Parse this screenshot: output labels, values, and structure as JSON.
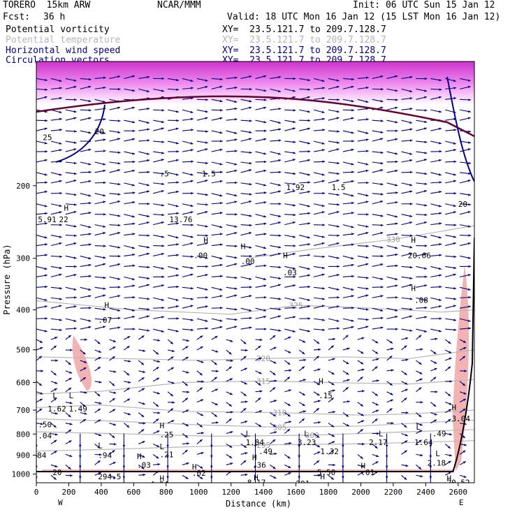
{
  "header": {
    "model": "TORERO  15km ARW",
    "source": "NCAR/MMM",
    "init": "Init: 06 UTC Sun 15 Jan 12",
    "fcst_label": "Fcst:",
    "fcst_value": "36 h",
    "valid": "Valid: 18 UTC Mon 16 Jan 12 (15 LST Mon 16 Jan 12)"
  },
  "legend": [
    {
      "label": "Potential vorticity",
      "xy": "XY=  23.5.121.7 to 209.7.128.7",
      "color": "#000000"
    },
    {
      "label": "Potential temperature",
      "xy": "XY=  23.5.121.7 to 209.7.128.7",
      "color": "#b5b5b5"
    },
    {
      "label": "Horizontal wind speed",
      "xy": "XY=  23.5.121.7 to 209.7.128.7",
      "color": "#000080"
    },
    {
      "label": "Circulation vectors",
      "xy": "XY=  23.5.121.7 to 209.7.128.7",
      "color": "#000080"
    }
  ],
  "chart_data": {
    "type": "cross-section",
    "xlabel": "Distance (km)",
    "ylabel": "Pressure (hPa)",
    "xlim": [
      0,
      2700
    ],
    "ylim": [
      1050,
      100
    ],
    "y_scale": "log",
    "x_ticks": [
      "0",
      "200",
      "400",
      "600",
      "800",
      "1000",
      "1200",
      "1400",
      "1600",
      "1800",
      "2000",
      "2200",
      "2400",
      "2600"
    ],
    "y_ticks": [
      "200",
      "300",
      "400",
      "500",
      "600",
      "700",
      "800",
      "900",
      "1000"
    ],
    "x_start_label": "W",
    "x_end_label": "E",
    "theta_contours": [
      {
        "label": "315",
        "points": [
          [
            0,
            640
          ],
          [
            400,
            630
          ],
          [
            900,
            600
          ],
          [
            1400,
            595
          ],
          [
            1800,
            600
          ],
          [
            2300,
            605
          ],
          [
            2700,
            590
          ]
        ]
      },
      {
        "label": "320",
        "points": [
          [
            0,
            520
          ],
          [
            500,
            525
          ],
          [
            1000,
            530
          ],
          [
            1400,
            525
          ],
          [
            1900,
            520
          ],
          [
            2300,
            525
          ],
          [
            2700,
            500
          ]
        ]
      },
      {
        "label": "325",
        "points": [
          [
            0,
            380
          ],
          [
            600,
            400
          ],
          [
            1200,
            410
          ],
          [
            1600,
            390
          ],
          [
            2000,
            395
          ],
          [
            2500,
            405
          ],
          [
            2700,
            400
          ]
        ]
      },
      {
        "label": "330",
        "points": [
          [
            1300,
            300
          ],
          [
            1700,
            285
          ],
          [
            2200,
            270
          ],
          [
            2700,
            250
          ]
        ]
      },
      {
        "label": "310",
        "points": [
          [
            0,
            690
          ],
          [
            400,
            680
          ],
          [
            900,
            705
          ],
          [
            1500,
            710
          ],
          [
            2000,
            720
          ],
          [
            2300,
            715
          ],
          [
            2700,
            700
          ]
        ]
      },
      {
        "label": "305",
        "points": [
          [
            0,
            735
          ],
          [
            500,
            745
          ],
          [
            1000,
            760
          ],
          [
            1500,
            770
          ],
          [
            2000,
            765
          ],
          [
            2700,
            740
          ]
        ]
      },
      {
        "label": "300",
        "points": [
          [
            0,
            790
          ],
          [
            600,
            800
          ],
          [
            1100,
            810
          ],
          [
            1700,
            805
          ],
          [
            2300,
            790
          ],
          [
            2700,
            780
          ]
        ]
      },
      {
        "label": "295",
        "points": [
          [
            0,
            880
          ],
          [
            500,
            870
          ],
          [
            900,
            860
          ],
          [
            1400,
            850
          ],
          [
            2000,
            845
          ],
          [
            2700,
            830
          ]
        ]
      }
    ],
    "pv_labels": [
      {
        "x": 100,
        "p": 655,
        "text": "L"
      },
      {
        "x": 70,
        "p": 705,
        "text": "1.62"
      },
      {
        "x": 200,
        "p": 655,
        "text": "L"
      },
      {
        "x": 200,
        "p": 705,
        "text": "1.49"
      },
      {
        "x": 10,
        "p": 770,
        "text": ".50"
      },
      {
        "x": 10,
        "p": 820,
        "text": ".04"
      },
      {
        "x": 380,
        "p": 865,
        "text": "L"
      },
      {
        "x": 380,
        "p": 915,
        "text": ".94"
      },
      {
        "x": 5,
        "p": 915,
        "text": "84"
      },
      {
        "x": 760,
        "p": 775,
        "text": "H"
      },
      {
        "x": 760,
        "p": 815,
        "text": ".25"
      },
      {
        "x": 760,
        "p": 870,
        "text": "L"
      },
      {
        "x": 760,
        "p": 910,
        "text": ".21"
      },
      {
        "x": 620,
        "p": 920,
        "text": "H"
      },
      {
        "x": 620,
        "p": 965,
        "text": ".03"
      },
      {
        "x": 1290,
        "p": 810,
        "text": "L"
      },
      {
        "x": 1290,
        "p": 850,
        "text": "1.84"
      },
      {
        "x": 1370,
        "p": 895,
        "text": ".49"
      },
      {
        "x": 1650,
        "p": 810,
        "text": "L"
      },
      {
        "x": 1610,
        "p": 850,
        "text": "3.23"
      },
      {
        "x": 1750,
        "p": 895,
        "text": "1.32"
      },
      {
        "x": 2110,
        "p": 810,
        "text": "L"
      },
      {
        "x": 2050,
        "p": 850,
        "text": "2.17"
      },
      {
        "x": 2340,
        "p": 780,
        "text": "L"
      },
      {
        "x": 2330,
        "p": 850,
        "text": "1.64"
      },
      {
        "x": 2440,
        "p": 810,
        "text": ".49"
      },
      {
        "x": 2460,
        "p": 905,
        "text": "L"
      },
      {
        "x": 2410,
        "p": 955,
        "text": "2.18"
      },
      {
        "x": 2560,
        "p": 700,
        "text": "H"
      },
      {
        "x": 2560,
        "p": 745,
        "text": "3.04"
      },
      {
        "x": 1740,
        "p": 605,
        "text": "H"
      },
      {
        "x": 1740,
        "p": 655,
        "text": ".15"
      },
      {
        "x": 420,
        "p": 395,
        "text": "H"
      },
      {
        "x": 380,
        "p": 430,
        "text": ".07"
      },
      {
        "x": 1030,
        "p": 275,
        "text": "H"
      },
      {
        "x": 970,
        "p": 300,
        "text": ".00"
      },
      {
        "x": 1260,
        "p": 285,
        "text": "H"
      },
      {
        "x": 1260,
        "p": 310,
        "text": ".00"
      },
      {
        "x": 1520,
        "p": 300,
        "text": "H"
      },
      {
        "x": 1520,
        "p": 330,
        "text": ".03"
      },
      {
        "x": 2310,
        "p": 275,
        "text": "H"
      },
      {
        "x": 2290,
        "p": 300,
        "text": "20.66"
      },
      {
        "x": 2310,
        "p": 360,
        "text": "H"
      },
      {
        "x": 2330,
        "p": 385,
        "text": ".08"
      },
      {
        "x": 170,
        "p": 230,
        "text": "H"
      },
      {
        "x": 10,
        "p": 245,
        "text": "5.91"
      },
      {
        "x": 140,
        "p": 245,
        "text": "22"
      },
      {
        "x": 820,
        "p": 245,
        "text": "13.76"
      },
      {
        "x": 1540,
        "p": 205,
        "text": "1.92"
      },
      {
        "x": 1820,
        "p": 205,
        "text": "1.5"
      },
      {
        "x": 760,
        "p": 190,
        "text": ".5"
      },
      {
        "x": 1020,
        "p": 190,
        "text": "1.5"
      },
      {
        "x": 360,
        "p": 150,
        "text": "20"
      },
      {
        "x": 40,
        "p": 155,
        "text": "25"
      },
      {
        "x": 2600,
        "p": 225,
        "text": "20"
      },
      {
        "x": 1330,
        "p": 925,
        "text": "H"
      },
      {
        "x": 1330,
        "p": 965,
        "text": ".36"
      },
      {
        "x": 960,
        "p": 975,
        "text": "H"
      },
      {
        "x": 960,
        "p": 1010,
        "text": ".02"
      },
      {
        "x": 1340,
        "p": 1035,
        "text": "H"
      },
      {
        "x": 1300,
        "p": 1065,
        "text": "8.17"
      },
      {
        "x": 760,
        "p": 1040,
        "text": "H"
      },
      {
        "x": 700,
        "p": 1075,
        "text": "4.04"
      },
      {
        "x": 1750,
        "p": 1030,
        "text": "H"
      },
      {
        "x": 1730,
        "p": 1005,
        "text": "5.50"
      },
      {
        "x": 2000,
        "p": 1005,
        "text": ".01"
      },
      {
        "x": 2000,
        "p": 970,
        "text": "H"
      },
      {
        "x": 2530,
        "p": 1040,
        "text": "H"
      },
      {
        "x": 2530,
        "p": 1065,
        "text": "20.52"
      },
      {
        "x": 100,
        "p": 1005,
        "text": "20"
      },
      {
        "x": 380,
        "p": 1030,
        "text": "294.5"
      },
      {
        "x": 1600,
        "p": 1070,
        "text": "291"
      }
    ]
  }
}
